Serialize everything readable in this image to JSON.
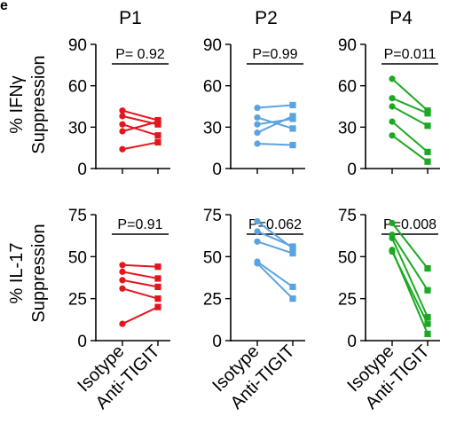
{
  "figure": {
    "panel_letter": "e",
    "row_labels": [
      {
        "line1": "% IFNγ",
        "line2": "Suppression"
      },
      {
        "line1": "% IL-17",
        "line2": "Suppression"
      }
    ],
    "x_categories": [
      "Isotype",
      "Anti-TIGIT"
    ]
  },
  "chart_data": [
    {
      "type": "line",
      "patient": "P1",
      "row": 0,
      "col": 0,
      "title": "P1",
      "pvalue": "P= 0.92",
      "ylabel": "% IFNγ Suppression",
      "color": "#e3161d",
      "ylim": [
        0,
        90
      ],
      "yticks": [
        0,
        30,
        60,
        90
      ],
      "categories": [
        "Isotype",
        "Anti-TIGIT"
      ],
      "pairs": [
        [
          42,
          35
        ],
        [
          38,
          32
        ],
        [
          32,
          24
        ],
        [
          27,
          34
        ],
        [
          14,
          19
        ]
      ]
    },
    {
      "type": "line",
      "patient": "P2",
      "row": 0,
      "col": 1,
      "title": "P2",
      "pvalue": "P=0.99",
      "ylabel": "% IFNγ Suppression",
      "color": "#5ba3e0",
      "ylim": [
        0,
        90
      ],
      "yticks": [
        0,
        30,
        60,
        90
      ],
      "categories": [
        "Isotype",
        "Anti-TIGIT"
      ],
      "pairs": [
        [
          44,
          46
        ],
        [
          37,
          29
        ],
        [
          32,
          36
        ],
        [
          26,
          38
        ],
        [
          18,
          17
        ]
      ]
    },
    {
      "type": "line",
      "patient": "P4",
      "row": 0,
      "col": 2,
      "title": "P4",
      "pvalue": "P=0.011",
      "ylabel": "% IFNγ Suppression",
      "color": "#1aaa22",
      "ylim": [
        0,
        90
      ],
      "yticks": [
        0,
        30,
        60,
        90
      ],
      "categories": [
        "Isotype",
        "Anti-TIGIT"
      ],
      "pairs": [
        [
          65,
          42
        ],
        [
          51,
          40
        ],
        [
          45,
          31
        ],
        [
          34,
          12
        ],
        [
          24,
          5
        ]
      ]
    },
    {
      "type": "line",
      "patient": "P1",
      "row": 1,
      "col": 0,
      "title": "",
      "pvalue": "P=0.91",
      "ylabel": "% IL-17 Suppression",
      "color": "#e3161d",
      "ylim": [
        0,
        75
      ],
      "yticks": [
        0,
        25,
        50,
        75
      ],
      "categories": [
        "Isotype",
        "Anti-TIGIT"
      ],
      "pairs": [
        [
          45,
          44
        ],
        [
          41,
          37
        ],
        [
          36,
          32
        ],
        [
          31,
          25
        ],
        [
          10,
          20
        ]
      ]
    },
    {
      "type": "line",
      "patient": "P2",
      "row": 1,
      "col": 1,
      "title": "",
      "pvalue": "P=0.062",
      "ylabel": "% IL-17 Suppression",
      "color": "#5ba3e0",
      "ylim": [
        0,
        75
      ],
      "yticks": [
        0,
        25,
        50,
        75
      ],
      "categories": [
        "Isotype",
        "Anti-TIGIT"
      ],
      "pairs": [
        [
          71,
          55
        ],
        [
          65,
          56
        ],
        [
          59,
          52
        ],
        [
          47,
          32
        ],
        [
          46,
          25
        ]
      ]
    },
    {
      "type": "line",
      "patient": "P4",
      "row": 1,
      "col": 2,
      "title": "",
      "pvalue": "P=0.008",
      "ylabel": "% IL-17 Suppression",
      "color": "#1aaa22",
      "ylim": [
        0,
        75
      ],
      "yticks": [
        0,
        25,
        50,
        75
      ],
      "categories": [
        "Isotype",
        "Anti-TIGIT"
      ],
      "pairs": [
        [
          70,
          43
        ],
        [
          63,
          30
        ],
        [
          61,
          14
        ],
        [
          53,
          10
        ],
        [
          54,
          4
        ]
      ]
    }
  ]
}
